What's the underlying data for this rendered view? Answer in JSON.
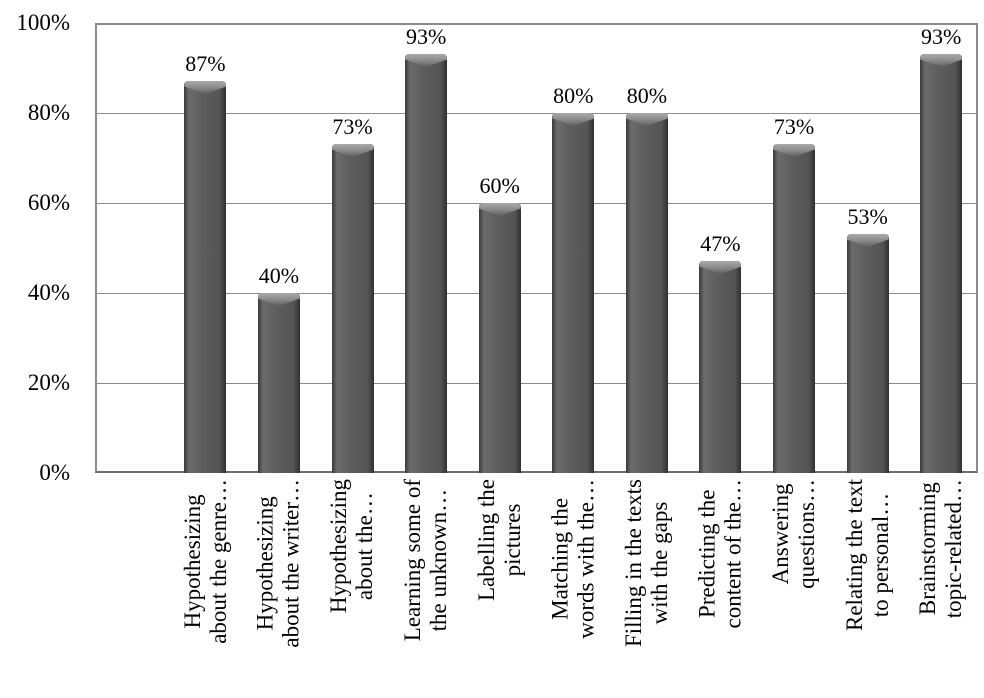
{
  "chart_data": {
    "type": "bar",
    "title": "",
    "categories": [
      "Hypothesizing\nabout the genre…",
      "Hypothesizing\nabout the writer…",
      "Hypothesizing\nabout the…",
      "Learning some of\nthe unknown…",
      "Labelling the\npictures",
      "Matching the\nwords with the…",
      "Filling in the texts\nwith the gaps",
      "Predicting the\ncontent of the…",
      "Answering\nquestions…",
      "Relating the text\nto personal…",
      "Brainstorming\ntopic-related…"
    ],
    "values": [
      87,
      40,
      73,
      93,
      60,
      80,
      80,
      47,
      73,
      53,
      93
    ],
    "data_labels": [
      "87%",
      "40%",
      "73%",
      "93%",
      "60%",
      "80%",
      "80%",
      "47%",
      "73%",
      "53%",
      "93%"
    ],
    "y_axis": {
      "min": 0,
      "max": 100,
      "step": 20,
      "tick_labels": [
        "100%",
        "80%",
        "60%",
        "40%",
        "20%",
        "0%"
      ]
    },
    "ylim": [
      0,
      100
    ],
    "grid": "horizontal",
    "legend": "none",
    "layout": {
      "bar_orientation": "vertical",
      "category_labels_rotated_degrees": 90,
      "leading_empty_slots": 1,
      "data_labels_position": "above bar"
    },
    "colors": {
      "bar_fill": "#5d5d5d",
      "bar_edge": "#3a3a3a",
      "bar_bevel_highlight": "#aaaaaa",
      "gridline": "#8c8c8c",
      "plot_border": "#8c8c8c",
      "axis_line": "#6e6e6e",
      "text": "#000000",
      "background": "#ffffff"
    }
  }
}
